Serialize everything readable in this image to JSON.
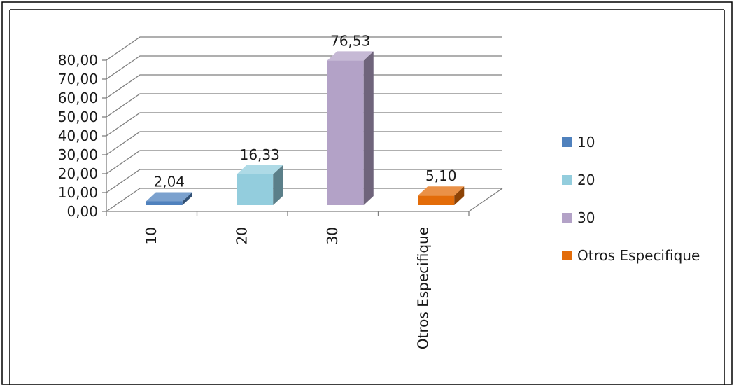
{
  "chart_data": {
    "type": "bar",
    "style": "3d-column",
    "categories": [
      "10",
      "20",
      "30",
      "Otros Especifique"
    ],
    "values": [
      2.04,
      16.33,
      76.53,
      5.1
    ],
    "value_labels": [
      "2,04",
      "16,33",
      "76,53",
      "5,10"
    ],
    "colors": [
      "#4F81BD",
      "#93CDDD",
      "#B3A2C7",
      "#E36C09"
    ],
    "ylim": [
      0,
      80
    ],
    "yticks": [
      0,
      10,
      20,
      30,
      40,
      50,
      60,
      70,
      80
    ],
    "ytick_labels": [
      "0,00",
      "10,00",
      "20,00",
      "30,00",
      "40,00",
      "50,00",
      "60,00",
      "70,00",
      "80,00"
    ],
    "title": "",
    "xlabel": "",
    "ylabel": "",
    "grid": true,
    "legend": {
      "position": "right",
      "entries": [
        "10",
        "20",
        "30",
        "Otros Especifique"
      ]
    }
  }
}
